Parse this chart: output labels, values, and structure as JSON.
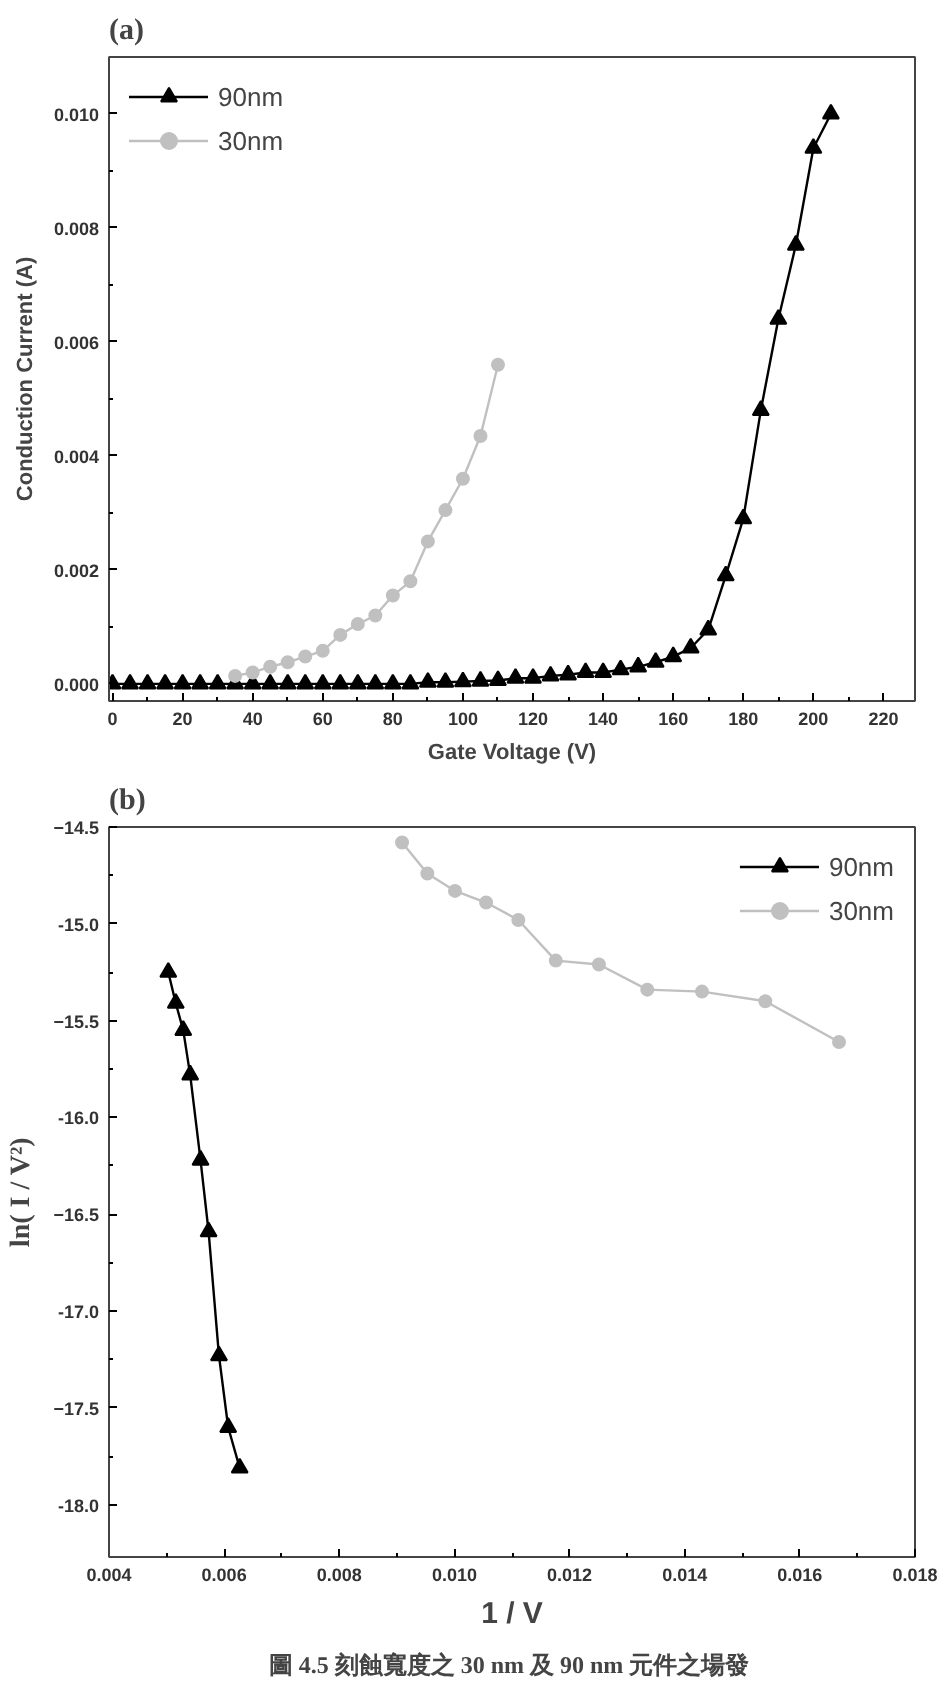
{
  "chart_data": [
    {
      "type": "line",
      "title": "(a)",
      "xlabel": "Gate Voltage (V)",
      "ylabel": "Conduction Current (A)",
      "xlim": [
        -1,
        229
      ],
      "ylim": [
        -0.0003,
        0.011
      ],
      "xticks": [
        0,
        20,
        40,
        60,
        80,
        100,
        120,
        140,
        160,
        180,
        200,
        220
      ],
      "yticks": [
        {
          "value": 0,
          "label": "0.000"
        },
        {
          "value": 0.002,
          "label": "0.002"
        },
        {
          "value": 0.004,
          "label": "0.004"
        },
        {
          "value": 0.006,
          "label": "0.006"
        },
        {
          "value": 0.008,
          "label": "0.008"
        },
        {
          "value": 0.01,
          "label": "0.010"
        }
      ],
      "grid": false,
      "legend": "top left",
      "line_style": "solid",
      "series": [
        {
          "name": "90nm",
          "color": "#000000",
          "marker": "triangle",
          "x": [
            0,
            5,
            10,
            15,
            20,
            25,
            30,
            35,
            40,
            45,
            50,
            55,
            60,
            65,
            70,
            75,
            80,
            85,
            90,
            95,
            100,
            105,
            110,
            115,
            120,
            125,
            130,
            135,
            140,
            145,
            150,
            155,
            160,
            165,
            170,
            175,
            180,
            185,
            190,
            195,
            200,
            205
          ],
          "values": [
            0,
            0,
            0,
            0,
            0,
            0,
            0,
            0,
            0,
            0,
            0,
            0,
            0,
            0,
            0,
            0,
            0,
            0,
            3e-05,
            3e-05,
            4e-05,
            5e-05,
            6e-05,
            0.0001,
            0.0001,
            0.00014,
            0.00016,
            0.0002,
            0.0002,
            0.00025,
            0.0003,
            0.00038,
            0.00048,
            0.00063,
            0.00095,
            0.0019,
            0.0029,
            0.0048,
            0.0064,
            0.0077,
            0.0094,
            0.01
          ]
        },
        {
          "name": "30nm",
          "color": "#c0c0c0",
          "marker": "circle",
          "x": [
            35,
            40,
            45,
            50,
            55,
            60,
            65,
            70,
            75,
            80,
            85,
            90,
            95,
            100,
            105,
            110
          ],
          "values": [
            0.00014,
            0.0002,
            0.0003,
            0.00038,
            0.00048,
            0.00058,
            0.00086,
            0.00105,
            0.0012,
            0.00155,
            0.0018,
            0.0025,
            0.00305,
            0.0036,
            0.00435,
            0.0056
          ]
        }
      ]
    },
    {
      "type": "line",
      "title": "(b)",
      "xlabel": "1 / V",
      "ylabel": "ln( I / V²)",
      "xlim": [
        0.004,
        0.018
      ],
      "ylim": [
        -18.27,
        -14.5
      ],
      "xticks": [
        0.004,
        0.006,
        0.008,
        {
          "value": 0.01,
          "label": "0.010"
        },
        0.012,
        0.014,
        0.016,
        0.018
      ],
      "yticks": [
        -14.5,
        {
          "value": -15,
          "label": "-15.0"
        },
        -15.5,
        {
          "value": -16,
          "label": "-16.0"
        },
        -16.5,
        {
          "value": -17,
          "label": "-17.0"
        },
        -17.5,
        {
          "value": -18,
          "label": "-18.0"
        }
      ],
      "grid": false,
      "legend": "top right",
      "line_style": "solid",
      "annotations": [
        "圖 4.5  刻蝕寬度之 30 nm 及 90 nm 元件之場發"
      ],
      "series": [
        {
          "name": "90nm",
          "color": "#000000",
          "marker": "triangle",
          "x": [
            0.00503,
            0.00516,
            0.00529,
            0.00541,
            0.00559,
            0.00573,
            0.00591,
            0.00607,
            0.00627
          ],
          "values": [
            -15.25,
            -15.41,
            -15.55,
            -15.78,
            -16.22,
            -16.59,
            -17.23,
            -17.6,
            -17.81
          ]
        },
        {
          "name": "30nm",
          "color": "#c0c0c0",
          "marker": "circle",
          "x": [
            0.00909,
            0.00953,
            0.01001,
            0.01055,
            0.01111,
            0.01176,
            0.01251,
            0.01335,
            0.0143,
            0.0154,
            0.01668
          ],
          "values": [
            -14.58,
            -14.74,
            -14.83,
            -14.89,
            -14.98,
            -15.19,
            -15.21,
            -15.34,
            -15.35,
            -15.4,
            -15.61
          ]
        }
      ]
    }
  ]
}
